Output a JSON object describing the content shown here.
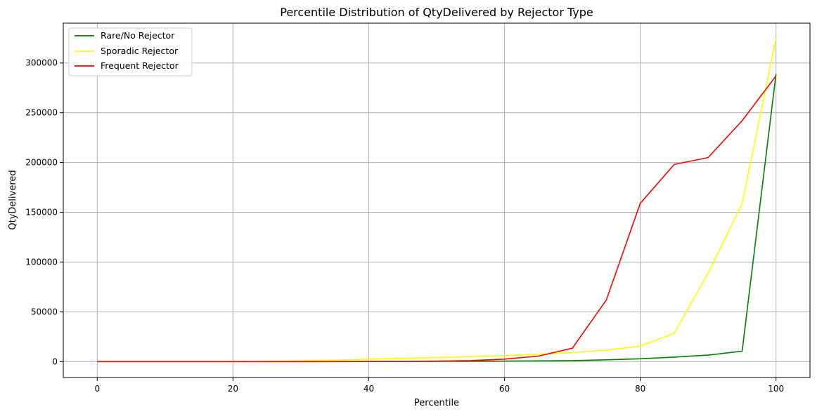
{
  "chart_data": {
    "type": "line",
    "title": "Percentile Distribution of QtyDelivered by Rejector Type",
    "xlabel": "Percentile",
    "ylabel": "QtyDelivered",
    "xlim": [
      -5,
      105
    ],
    "ylim": [
      -16000,
      340000
    ],
    "xticks": [
      0,
      20,
      40,
      60,
      80,
      100
    ],
    "yticks": [
      0,
      50000,
      100000,
      150000,
      200000,
      250000,
      300000
    ],
    "grid": true,
    "legend_position": "upper-left",
    "x": [
      0,
      5,
      10,
      15,
      20,
      25,
      30,
      35,
      40,
      45,
      50,
      55,
      60,
      65,
      70,
      75,
      80,
      85,
      90,
      95,
      100
    ],
    "series": [
      {
        "name": "Rare/No Rejector",
        "color": "#008000",
        "values": [
          0,
          0,
          0,
          0,
          0,
          0,
          0,
          50,
          100,
          150,
          250,
          350,
          500,
          700,
          1000,
          1800,
          2800,
          4500,
          6500,
          10500,
          289000
        ]
      },
      {
        "name": "Sporadic Rejector",
        "color": "#ffff00",
        "values": [
          0,
          0,
          0,
          0,
          100,
          300,
          800,
          1500,
          2500,
          3200,
          4000,
          5000,
          6000,
          7500,
          9000,
          11500,
          15500,
          28500,
          89000,
          159000,
          325000
        ]
      },
      {
        "name": "Frequent Rejector",
        "color": "#ff0000",
        "values": [
          0,
          0,
          0,
          0,
          0,
          0,
          0,
          0,
          100,
          200,
          500,
          1000,
          2500,
          5500,
          13500,
          62000,
          159000,
          198000,
          205000,
          242000,
          287000
        ]
      }
    ]
  }
}
